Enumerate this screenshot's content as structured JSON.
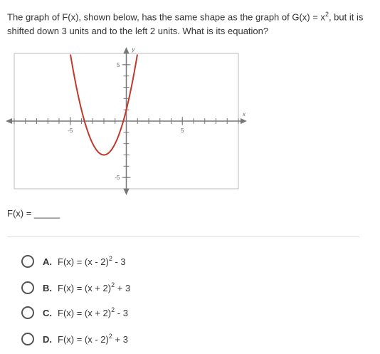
{
  "question": {
    "part1": "The graph of F(x), shown below, has the same shape as the graph of G(x) = x",
    "exponent": "2",
    "part2": ", but it is shifted down 3 units and to the left 2 units. What is its equation?"
  },
  "graph": {
    "xlim": [
      -10,
      10
    ],
    "ylim": [
      -6,
      6
    ],
    "xticks": [
      -5,
      5
    ],
    "yticks": [
      5,
      -5
    ],
    "x_label": "x",
    "y_label": "y",
    "curve": {
      "vertex_x": -2,
      "vertex_y": -3,
      "a": 1
    }
  },
  "answer_prompt": "F(x) = _____",
  "choices": [
    {
      "label": "A.",
      "text": "F(x) = (x - 2)",
      "exponent": "2",
      "tail": " - 3"
    },
    {
      "label": "B.",
      "text": "F(x) = (x + 2)",
      "exponent": "2",
      "tail": " + 3"
    },
    {
      "label": "C.",
      "text": "F(x) = (x + 2)",
      "exponent": "2",
      "tail": " - 3"
    },
    {
      "label": "D.",
      "text": "F(x) = (x - 2)",
      "exponent": "2",
      "tail": " + 3"
    }
  ]
}
